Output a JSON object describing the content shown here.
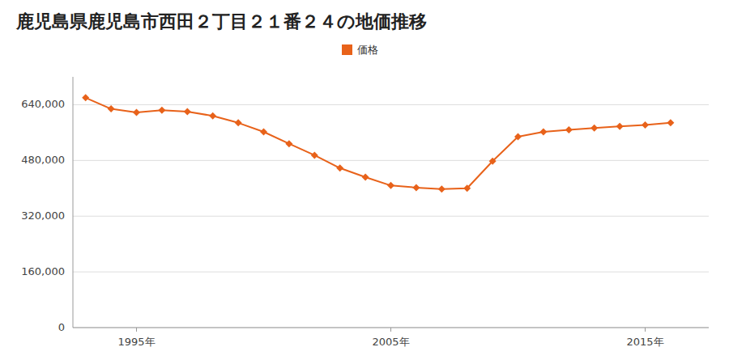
{
  "chart_data": {
    "type": "line",
    "title": "鹿児島県鹿児島市西田２丁目２１番２４の地価推移",
    "x": [
      1993,
      1994,
      1995,
      1996,
      1997,
      1998,
      1999,
      2000,
      2001,
      2002,
      2003,
      2004,
      2005,
      2006,
      2007,
      2008,
      2009,
      2010,
      2011,
      2012,
      2013,
      2014,
      2015,
      2016
    ],
    "series": [
      {
        "name": "価格",
        "color": "#E8621A",
        "marker": "diamond",
        "values": [
          660000,
          628000,
          618000,
          624000,
          620000,
          608000,
          588000,
          562000,
          528000,
          495000,
          458000,
          432000,
          408000,
          402000,
          398000,
          400000,
          478000,
          548000,
          562000,
          568000,
          573000,
          578000,
          582000,
          588000
        ]
      }
    ],
    "xlim": [
      1992.5,
      2017.5
    ],
    "xticks": [
      {
        "value": 1995,
        "label": "1995年"
      },
      {
        "value": 2005,
        "label": "2005年"
      },
      {
        "value": 2015,
        "label": "2015年"
      }
    ],
    "ylim": [
      0,
      720000
    ],
    "yticks": [
      0,
      {
        "value": 160000,
        "label": "160,000"
      },
      {
        "value": 320000,
        "label": "320,000"
      },
      {
        "value": 480000,
        "label": "480,000"
      },
      {
        "value": 640000,
        "label": "640,000"
      }
    ],
    "grid": "y",
    "legend": "top"
  }
}
